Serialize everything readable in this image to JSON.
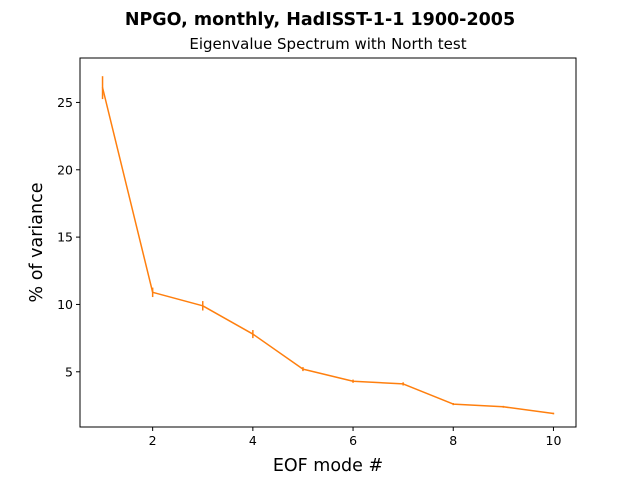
{
  "figure": {
    "suptitle": "NPGO, monthly, HadISST-1-1 1900-2005"
  },
  "chart_data": {
    "type": "line",
    "title": "Eigenvalue Spectrum with North test",
    "xlabel": "EOF mode #",
    "ylabel": "% of variance",
    "xlim": [
      0.55,
      10.45
    ],
    "ylim": [
      0.9,
      28.3
    ],
    "xticks": [
      2,
      4,
      6,
      8,
      10
    ],
    "yticks": [
      5,
      10,
      15,
      20,
      25
    ],
    "grid": false,
    "colors": {
      "line": "#ff7f0e",
      "errorbar": "#ff7f0e"
    },
    "series": [
      {
        "x": [
          1,
          2,
          3,
          4,
          5,
          6,
          7,
          8,
          9,
          10
        ],
        "values": [
          26.1,
          10.9,
          9.9,
          7.8,
          5.2,
          4.3,
          4.1,
          2.6,
          2.4,
          1.9
        ],
        "errors": [
          0.85,
          0.35,
          0.35,
          0.3,
          0.15,
          0.12,
          0.12,
          0.08,
          0.07,
          0.06
        ]
      }
    ]
  }
}
